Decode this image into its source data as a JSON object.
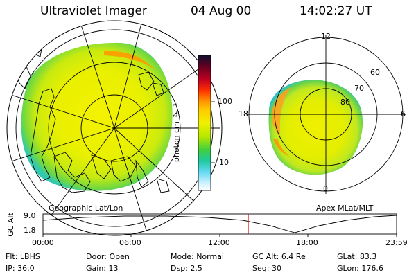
{
  "header": {
    "instrument": "Ultraviolet Imager",
    "date": "04 Aug 00",
    "time": "14:02:27 UT"
  },
  "geo_panel": {
    "caption": "Geographic Lat/Lon"
  },
  "mlt_panel": {
    "caption": "Apex MLat/MLT",
    "mlt_labels": {
      "top": "12",
      "left": "18",
      "right": "6",
      "bottom": "0"
    },
    "lat_labels": [
      "60",
      "70",
      "80"
    ]
  },
  "colorbar": {
    "unit": "photon cm⁻²s⁻¹",
    "tick_labels": [
      "100",
      "10"
    ],
    "colors": [
      "#101030",
      "#600020",
      "#c00020",
      "#ff3000",
      "#ff8a00",
      "#ffc800",
      "#f0f000",
      "#b8e800",
      "#40d040",
      "#20c8a0",
      "#60d8f0",
      "#c8f0ff",
      "#ffffff"
    ]
  },
  "altitude_strip": {
    "ylabel": "GC Alt",
    "ytick_top": "9.0",
    "ytick_bottom": "1.8",
    "time_ticks": [
      "00:00",
      "06:00",
      "12:00",
      "18:00",
      "23:59"
    ],
    "marker_color": "#e00000"
  },
  "status": {
    "row1": [
      {
        "label": "Flt:",
        "value": "LBHS"
      },
      {
        "label": "Door:",
        "value": "Open"
      },
      {
        "label": "Mode:",
        "value": "Normal"
      },
      {
        "label": "GC Alt:",
        "value": "6.4 Re"
      },
      {
        "label": "GLat:",
        "value": "83.3"
      }
    ],
    "row2": [
      {
        "label": "IP:",
        "value": "36.0"
      },
      {
        "label": "Gain:",
        "value": "13"
      },
      {
        "label": "Dsp:",
        "value": "2.5"
      },
      {
        "label": "Seq:",
        "value": "30"
      },
      {
        "label": "GLon:",
        "value": "176.6"
      }
    ]
  }
}
